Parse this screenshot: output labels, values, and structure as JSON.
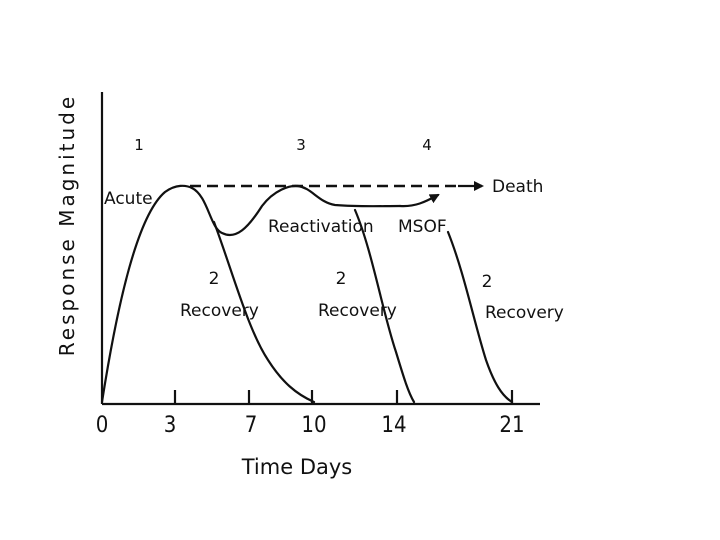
{
  "diagram": {
    "y_axis_label": "Response Magnitude",
    "x_axis_label": "Time Days",
    "x_ticks": [
      "0",
      "3",
      "7",
      "10",
      "14",
      "21"
    ],
    "phase_numbers": [
      "1",
      "3",
      "4"
    ],
    "labels": {
      "acute": "Acute",
      "reactivation": "Reactivation",
      "msof": "MSOF",
      "death": "Death",
      "recovery_number": "2",
      "recovery": "Recovery"
    }
  }
}
